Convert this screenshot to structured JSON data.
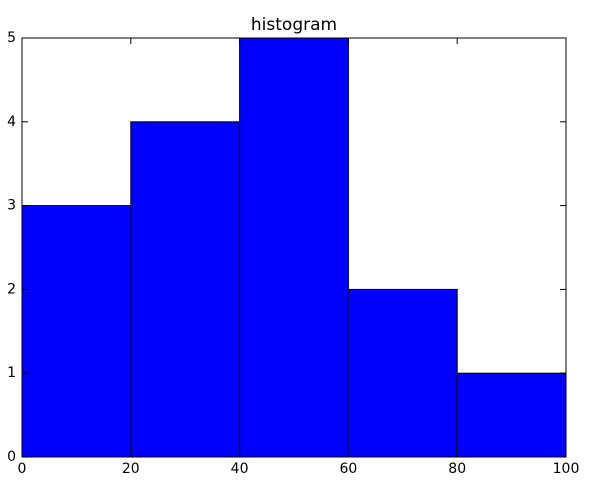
{
  "chart_data": {
    "type": "histogram",
    "title": "histogram",
    "bins": [
      0,
      20,
      40,
      60,
      80,
      100
    ],
    "values": [
      3,
      4,
      5,
      2,
      1
    ],
    "color": "#0000ff",
    "xlim": [
      0,
      100
    ],
    "xticks": [
      0,
      20,
      40,
      60,
      80,
      100
    ],
    "ylim": [
      0,
      5
    ],
    "yticks": [
      0,
      1,
      2,
      3,
      4,
      5
    ]
  }
}
